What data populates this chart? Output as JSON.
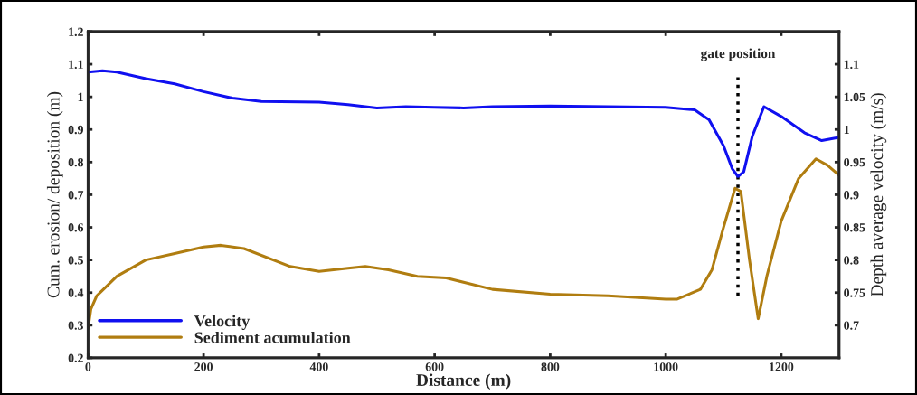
{
  "chart_data": {
    "type": "line",
    "xlabel": "Distance (m)",
    "ylabel": "Cum. erosion/ deposition (m)",
    "y2label": "Depth average velocity (m/s)",
    "series": [
      {
        "name": "Velocity",
        "color": "#1010f0",
        "axis": "y2",
        "x": [
          0,
          25,
          50,
          100,
          150,
          200,
          250,
          300,
          400,
          450,
          500,
          550,
          600,
          650,
          700,
          800,
          900,
          1000,
          1050,
          1075,
          1100,
          1115,
          1125,
          1135,
          1150,
          1170,
          1200,
          1240,
          1270,
          1300
        ],
        "values": [
          1.088,
          1.09,
          1.088,
          1.078,
          1.07,
          1.058,
          1.048,
          1.043,
          1.042,
          1.038,
          1.033,
          1.035,
          1.034,
          1.033,
          1.035,
          1.036,
          1.035,
          1.034,
          1.03,
          1.015,
          0.975,
          0.94,
          0.928,
          0.935,
          0.99,
          1.035,
          1.02,
          0.995,
          0.983,
          0.988
        ]
      },
      {
        "name": "Sediment acumulation",
        "color": "#b07d10",
        "axis": "y",
        "x": [
          0,
          5,
          15,
          50,
          100,
          150,
          200,
          230,
          270,
          350,
          400,
          450,
          480,
          520,
          570,
          620,
          700,
          800,
          900,
          1000,
          1020,
          1060,
          1080,
          1100,
          1120,
          1130,
          1145,
          1160,
          1175,
          1200,
          1230,
          1260,
          1280,
          1300
        ],
        "values": [
          0.29,
          0.35,
          0.39,
          0.45,
          0.5,
          0.52,
          0.54,
          0.545,
          0.535,
          0.48,
          0.465,
          0.475,
          0.48,
          0.47,
          0.45,
          0.445,
          0.41,
          0.395,
          0.39,
          0.38,
          0.38,
          0.41,
          0.47,
          0.6,
          0.72,
          0.71,
          0.5,
          0.32,
          0.45,
          0.62,
          0.75,
          0.81,
          0.79,
          0.76
        ]
      }
    ],
    "xlim": [
      0,
      1300
    ],
    "xticks": [
      0,
      200,
      400,
      600,
      800,
      1000,
      1200
    ],
    "ylim": [
      0.2,
      1.2
    ],
    "yticks": [
      0.2,
      0.3,
      0.4,
      0.5,
      0.6,
      0.7,
      0.8,
      0.9,
      1,
      1.1,
      1.2
    ],
    "y2lim": [
      0.65,
      1.15
    ],
    "y2ticks": [
      0.7,
      0.75,
      0.8,
      0.85,
      0.9,
      0.95,
      1,
      1.05,
      1.1
    ],
    "ref_lines": [
      {
        "axis": "x",
        "value": 1125,
        "label": "gate position",
        "color": "#000000",
        "line_style": "dotted"
      }
    ],
    "legend": "bottom left",
    "grid": false
  }
}
